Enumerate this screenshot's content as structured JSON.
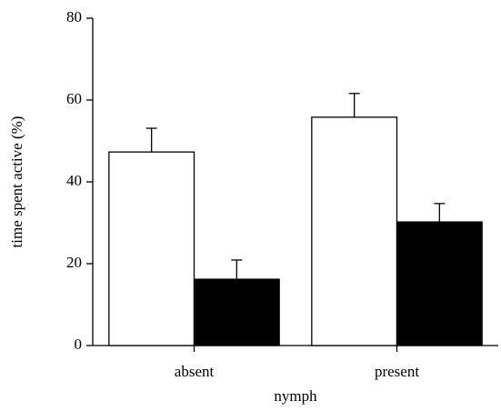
{
  "chart_data": {
    "type": "bar",
    "x_label": "nymph",
    "y_label": "time spent active (%)",
    "categories": [
      "absent",
      "present"
    ],
    "series": [
      {
        "color": "#ffffff",
        "values": [
          47.3,
          55.8
        ],
        "errors": [
          5.8,
          5.8
        ]
      },
      {
        "color": "#000000",
        "values": [
          16.2,
          30.2
        ],
        "errors": [
          4.7,
          4.5
        ]
      }
    ],
    "ylim": [
      0,
      80
    ],
    "yticks": [
      0,
      20,
      40,
      60,
      80
    ],
    "grid": false
  }
}
